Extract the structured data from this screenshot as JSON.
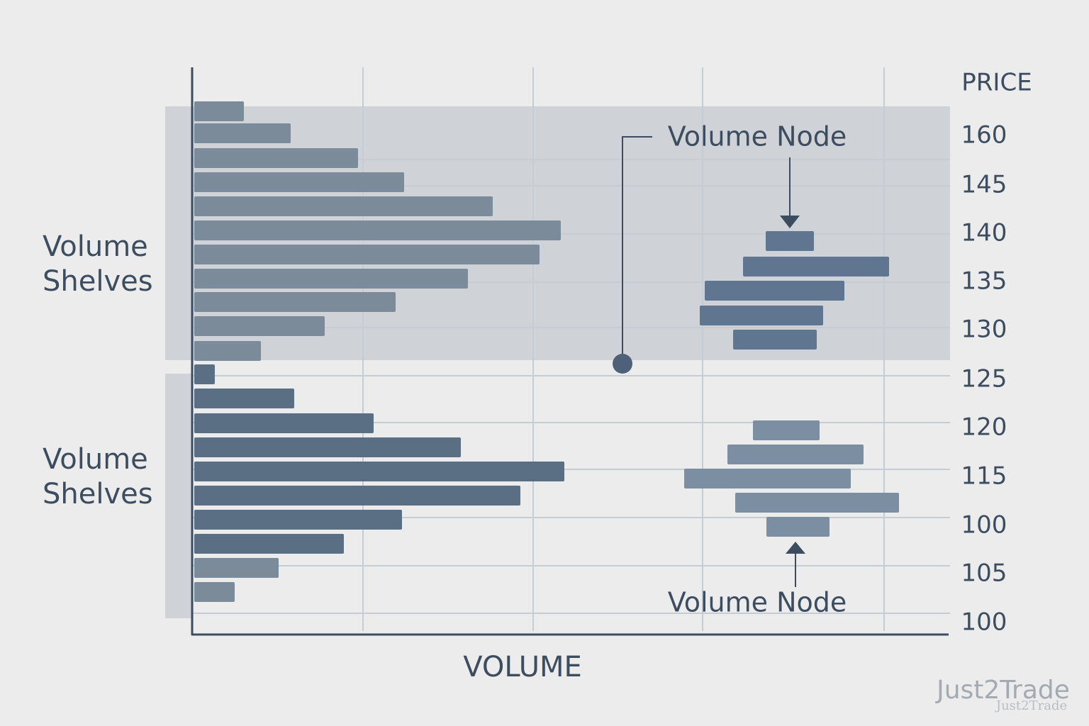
{
  "axis_labels": {
    "price": "PRICE",
    "volume": "VOLUME"
  },
  "price_labels": [
    "160",
    "145",
    "140",
    "135",
    "130",
    "125",
    "120",
    "115",
    "100",
    "105",
    "100"
  ],
  "annotations": {
    "upper_shelves": [
      "Volume",
      "Shelves"
    ],
    "lower_shelves": [
      "Volume",
      "Shelves"
    ],
    "upper_node": "Volume Node",
    "lower_node": "Volume Node"
  },
  "watermark": {
    "main": "Just2Trade",
    "small": "Just2Trade"
  }
}
